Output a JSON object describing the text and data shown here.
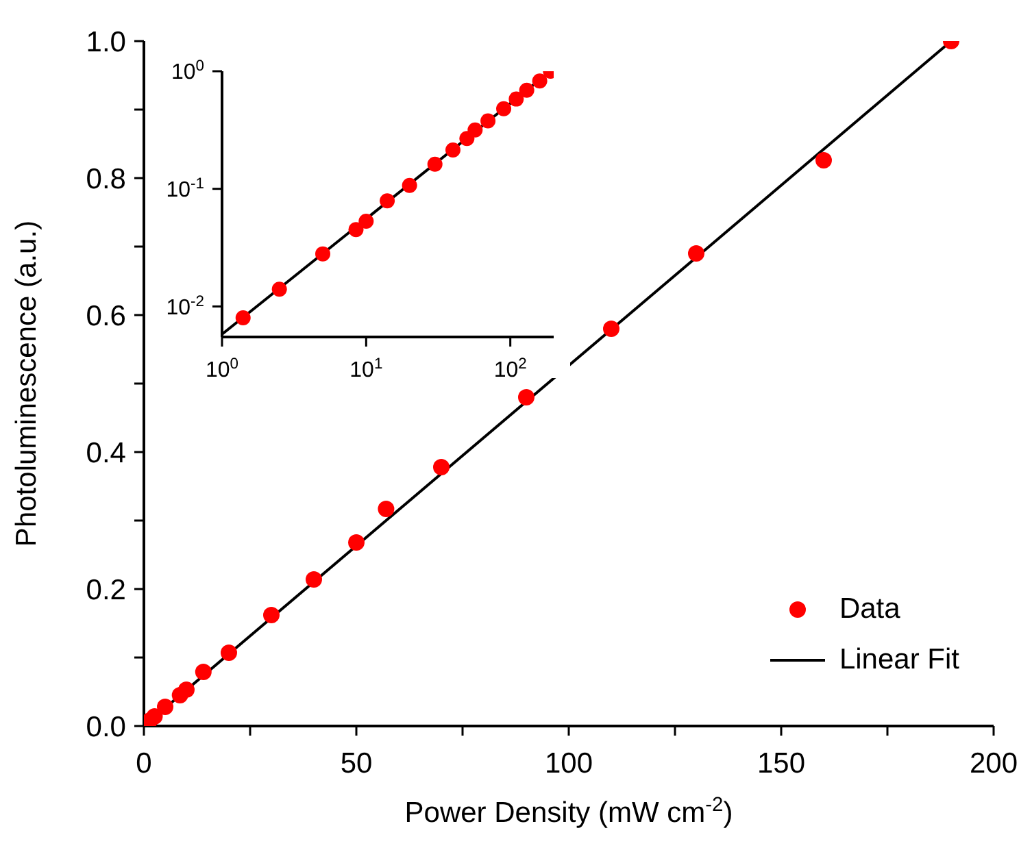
{
  "chart_data": [
    {
      "type": "scatter",
      "xlabel": "Power Density (mW cm$^{-2}$)",
      "ylabel": "Photoluminescence (a.u.)",
      "xlim": [
        0,
        200
      ],
      "ylim": [
        0,
        1.0
      ],
      "xticks": [
        0,
        {
          "value": 25,
          "label": null
        },
        50,
        {
          "value": 75,
          "label": null
        },
        100,
        {
          "value": 125,
          "label": null
        },
        150,
        {
          "value": 175,
          "label": null
        },
        200
      ],
      "yticks": [
        {
          "value": 0,
          "label": "0.0"
        },
        {
          "value": 0.1,
          "label": null
        },
        0.2,
        {
          "value": 0.3,
          "label": null
        },
        0.4,
        {
          "value": 0.5,
          "label": null
        },
        0.6,
        {
          "value": 0.7,
          "label": null
        },
        0.8,
        {
          "value": 0.9,
          "label": null
        },
        {
          "value": 1,
          "label": "1.0"
        }
      ],
      "grid": false,
      "legend": "bottom right",
      "series": [
        {
          "name": "Data",
          "type": "scatter",
          "marker": "circle",
          "color": "#ff0000",
          "x": [
            1.4,
            2.5,
            5,
            8.5,
            10,
            14,
            20,
            30,
            40,
            50,
            57,
            70,
            90,
            110,
            130,
            160,
            190
          ],
          "values": [
            0.008,
            0.014,
            0.028,
            0.045,
            0.053,
            0.079,
            0.107,
            0.162,
            0.214,
            0.268,
            0.317,
            0.378,
            0.48,
            0.58,
            0.69,
            0.826,
            1.0
          ]
        },
        {
          "name": "Linear Fit",
          "type": "line",
          "line_style": "solid",
          "marker": "none",
          "color": "#000000",
          "x": [
            0,
            190
          ],
          "values": [
            0,
            1.0
          ]
        }
      ]
    },
    {
      "type": "scatter",
      "log": "xy",
      "xlim": [
        1,
        200
      ],
      "ylim": [
        0.0055,
        1
      ],
      "xticks": [
        {
          "value": 1,
          "label": "10$^{0}$"
        },
        {
          "value": 10,
          "label": "10$^{1}$"
        },
        {
          "value": 100,
          "label": "10$^{2}$"
        }
      ],
      "yticks": [
        {
          "value": 0.01,
          "label": "10$^{-2}$"
        },
        {
          "value": 0.1,
          "label": "10$^{-1}$"
        },
        {
          "value": 1,
          "label": "10$^{0}$"
        }
      ],
      "grid": false,
      "series": [
        {
          "type": "scatter",
          "marker": "circle",
          "color": "#ff0000",
          "x": [
            1.4,
            2.5,
            5,
            8.5,
            10,
            14,
            20,
            30,
            40,
            50,
            57,
            70,
            90,
            110,
            130,
            160,
            190
          ],
          "values": [
            0.008,
            0.014,
            0.028,
            0.045,
            0.053,
            0.079,
            0.107,
            0.162,
            0.214,
            0.268,
            0.317,
            0.378,
            0.48,
            0.58,
            0.69,
            0.826,
            1.0
          ]
        },
        {
          "type": "line",
          "line_style": "solid",
          "marker": "none",
          "color": "#000000",
          "x": [
            1,
            190
          ],
          "values": [
            0.0058,
            1.0
          ]
        }
      ]
    }
  ]
}
